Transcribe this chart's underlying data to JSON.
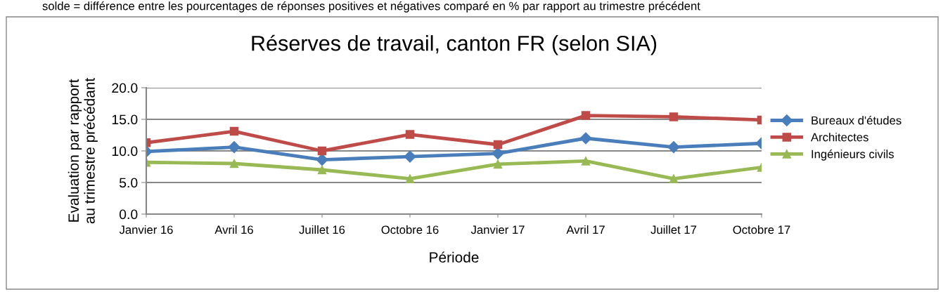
{
  "chart_data": {
    "type": "line",
    "title": "Réserves de travail, canton FR (selon SIA)",
    "xlabel": "Période",
    "ylabel": "Evaluation par rapport\nau trimestre précédant",
    "annotations": [
      "solde = différence entre les pourcentages de réponses positives et négatives comparé en % par rapport au trimestre précédent"
    ],
    "categories": [
      "Janvier 16",
      "Avril 16",
      "Juillet 16",
      "Octobre 16",
      "Janvier 17",
      "Avril 17",
      "Juillet 17",
      "Octobre 17"
    ],
    "series": [
      {
        "name": "Bureaux d'études",
        "color": "#4a7ebb",
        "marker": "diamond",
        "values": [
          9.9,
          10.6,
          8.6,
          9.1,
          9.6,
          12.0,
          10.6,
          11.2
        ]
      },
      {
        "name": "Architectes",
        "color": "#be4b48",
        "marker": "square",
        "values": [
          11.3,
          13.1,
          10.0,
          12.6,
          11.0,
          15.6,
          15.4,
          14.9
        ]
      },
      {
        "name": "Ingénieurs civils",
        "color": "#98b954",
        "marker": "triangle",
        "values": [
          8.2,
          8.0,
          7.0,
          5.6,
          7.9,
          8.4,
          5.6,
          7.4
        ]
      }
    ],
    "ylim": [
      0,
      20
    ],
    "yticks": [
      {
        "value": 0,
        "label": "0.0"
      },
      {
        "value": 5,
        "label": "5.0"
      },
      {
        "value": 10,
        "label": "10.0"
      },
      {
        "value": 15,
        "label": "15.0"
      },
      {
        "value": 20,
        "label": "20.0"
      }
    ],
    "grid": "y",
    "legend": "right",
    "line_style": "solid"
  }
}
